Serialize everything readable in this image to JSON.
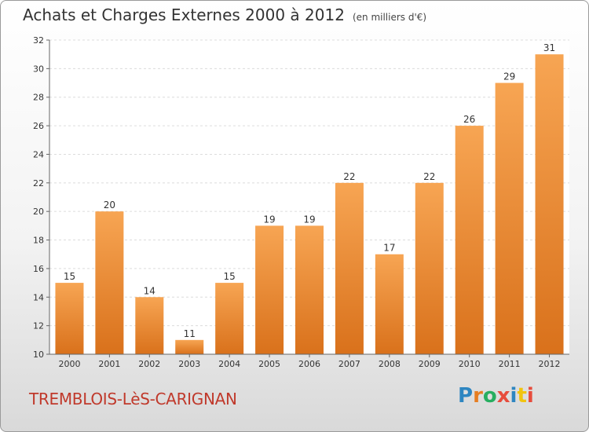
{
  "chart_data": {
    "type": "bar",
    "title": "Achats et Charges Externes 2000 à 2012",
    "subtitle": "(en milliers d'€)",
    "categories": [
      "2000",
      "2001",
      "2002",
      "2003",
      "2004",
      "2005",
      "2006",
      "2007",
      "2008",
      "2009",
      "2010",
      "2011",
      "2012"
    ],
    "values": [
      15,
      20,
      14,
      11,
      15,
      19,
      19,
      22,
      17,
      22,
      26,
      29,
      31
    ],
    "ylim": [
      10,
      32
    ],
    "yticks": [
      10,
      12,
      14,
      16,
      18,
      20,
      22,
      24,
      26,
      28,
      30,
      32
    ],
    "grid": true,
    "bar_color_top": "#f7a553",
    "bar_color_bottom": "#d9711b"
  },
  "footer": {
    "city": "TREMBLOIS-LèS-CARIGNAN",
    "logo_letters": [
      "P",
      "r",
      "o",
      "x",
      "i",
      "t",
      "i"
    ],
    "logo_colors": [
      "#2e86c1",
      "#e67e22",
      "#27ae60",
      "#e74c3c",
      "#2e86c1",
      "#f1c40f",
      "#e74c3c"
    ]
  }
}
